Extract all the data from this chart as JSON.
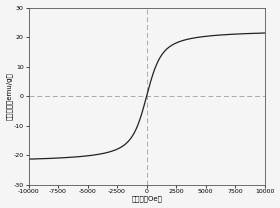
{
  "xlim": [
    -10000,
    10000
  ],
  "ylim": [
    -30,
    30
  ],
  "xticks": [
    -10000,
    -7500,
    -5000,
    -2500,
    0,
    2500,
    5000,
    7500,
    10000
  ],
  "yticks": [
    -30,
    -20,
    -10,
    0,
    10,
    20,
    30
  ],
  "xlabel": "施磁力（Oe）",
  "ylabel": "磁化强度（emu/g）",
  "Ms": 22.5,
  "a": 500,
  "curve_color": "#222222",
  "dashed_color": "#aaaaaa",
  "background_color": "#f5f5f5",
  "vline_x": 0,
  "hline_y": 0,
  "figwidth": 2.8,
  "figheight": 2.08,
  "dpi": 100
}
